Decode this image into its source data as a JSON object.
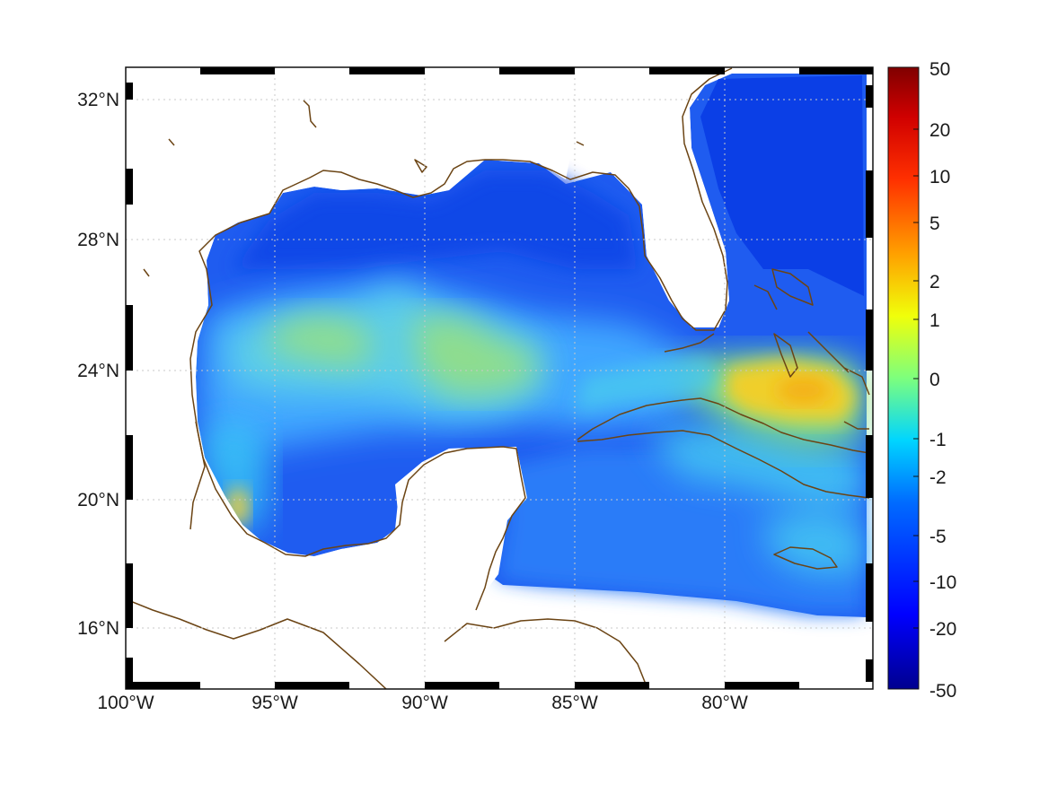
{
  "map": {
    "longitude_labels": [
      "100°W",
      "95°W",
      "90°W",
      "85°W",
      "80°W"
    ],
    "latitude_labels": [
      "32°N",
      "28°N",
      "24°N",
      "20°N",
      "16°N"
    ],
    "coastline_color": "#6b4414",
    "graticule": "dotted grid",
    "projection_frame": "black-and-white dashed border"
  },
  "colorbar": {
    "tick_labels": [
      "50",
      "20",
      "10",
      "5",
      "2",
      "1",
      "0",
      "-1",
      "-2",
      "-5",
      "-10",
      "-20",
      "-50"
    ],
    "colormap": "jet",
    "min_color": "#00008f",
    "max_color": "#800000"
  },
  "field": {
    "colors": {
      "deep_blue": "#0a2fe0",
      "blue": "#1f63f2",
      "light_blue": "#3aa0ff",
      "cyan": "#40d0f0",
      "green": "#8be28a",
      "yellow": "#f2d52a",
      "orange": "#f3b51a"
    }
  }
}
